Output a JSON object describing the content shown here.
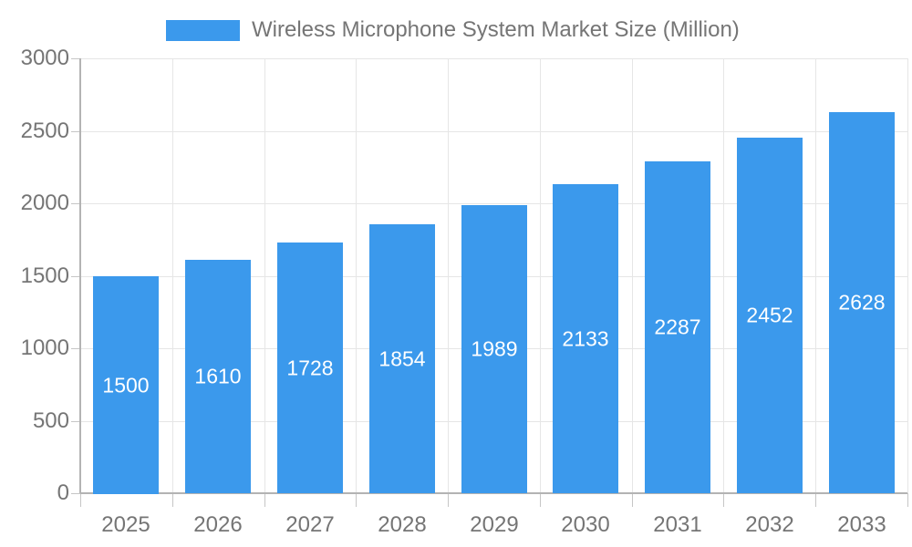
{
  "chart_data": {
    "type": "bar",
    "title": "Wireless Microphone System Market Size (Million)",
    "categories": [
      "2025",
      "2026",
      "2027",
      "2028",
      "2029",
      "2030",
      "2031",
      "2032",
      "2033"
    ],
    "values": [
      1500,
      1610,
      1728,
      1854,
      1989,
      2133,
      2287,
      2452,
      2628
    ],
    "value_labels": [
      "1500",
      "1610",
      "1728",
      "1854",
      "1989",
      "2133",
      "2287",
      "2452",
      "2628"
    ],
    "xlabel": "",
    "ylabel": "",
    "ylim": [
      0,
      3000
    ],
    "yticks": [
      0,
      500,
      1000,
      1500,
      2000,
      2500,
      3000
    ],
    "ytick_labels": [
      "0",
      "500",
      "1000",
      "1500",
      "2000",
      "2500",
      "3000"
    ],
    "grid": true,
    "legend_position": "top",
    "colors": {
      "bar": "#3B99EC",
      "bar_value_text": "#FFFFFF",
      "axis_text": "#757575",
      "gridline": "#E6E6E6",
      "tick": "#C6C6C6",
      "axis_line": "#B3B3B3",
      "background": "#FFFFFF"
    }
  }
}
